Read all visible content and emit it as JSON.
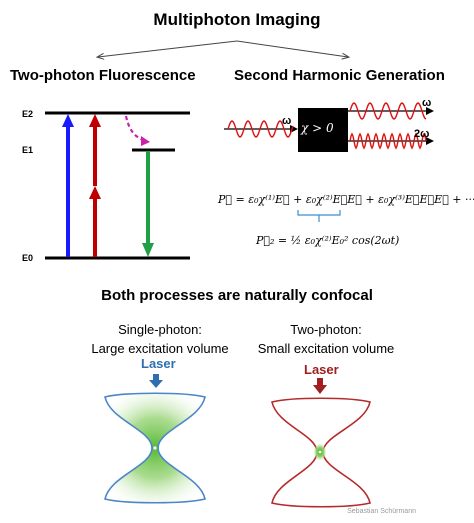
{
  "title": "Multiphoton Imaging",
  "left_heading": "Two-photon Fluorescence",
  "right_heading": "Second Harmonic Generation",
  "levels": {
    "e2": "E2",
    "e1": "E1",
    "e0": "E0"
  },
  "shg": {
    "chi_label": "χ > 0",
    "omega_in": "ω",
    "omega_out": "ω",
    "two_omega": "2ω"
  },
  "equations": {
    "polarization": "P⃗ = ε₀χ⁽¹⁾E⃗ + ε₀χ⁽²⁾E⃗E⃗ + ε₀χ⁽³⁾E⃗E⃗E⃗ + ···",
    "second_order": "P⃗₂ = ½ ε₀χ⁽²⁾E₀² cos(2ωt)"
  },
  "confocal_heading": "Both processes are naturally confocal",
  "single_photon": {
    "caption_line1": "Single-photon:",
    "caption_line2": "Large excitation volume",
    "laser_label": "Laser"
  },
  "two_photon": {
    "caption_line1": "Two-photon:",
    "caption_line2": "Small excitation volume",
    "laser_label": "Laser"
  },
  "credit": "Sebastian Schürmann",
  "colors": {
    "blue_arrow": "#1a1aff",
    "red_arrow": "#c00000",
    "green_arrow": "#1fa045",
    "dashed_arrow": "#cc22aa",
    "single_outline": "#4a86c8",
    "two_outline": "#b52b2b",
    "focus_green": "#5cbf2a"
  }
}
